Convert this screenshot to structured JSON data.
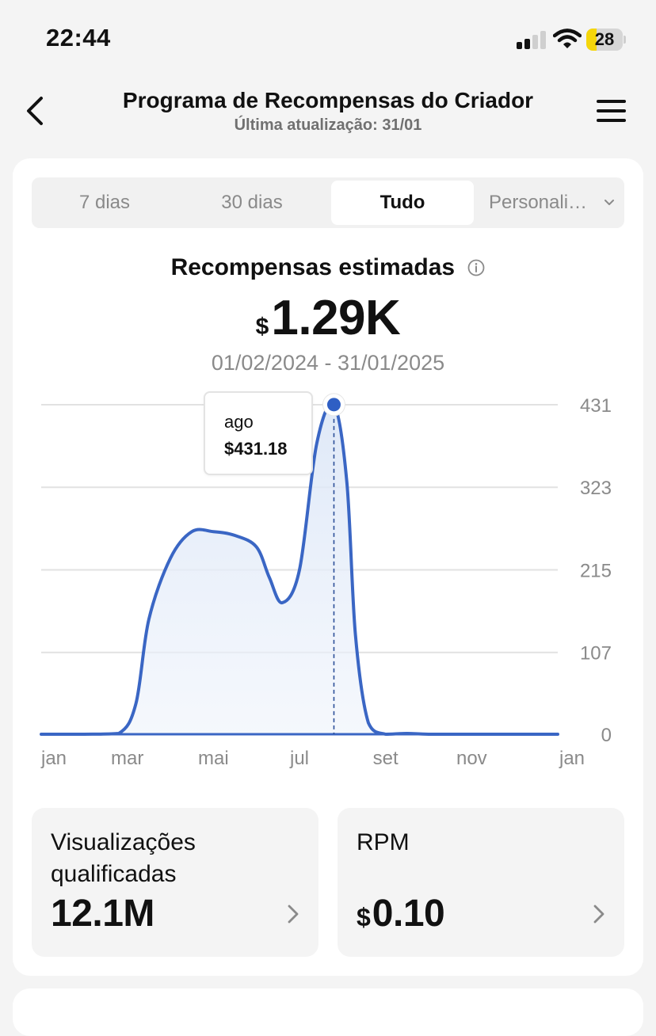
{
  "status_bar": {
    "time": "22:44",
    "battery": "28",
    "battery_level": 0.28,
    "signal_bars": 2
  },
  "header": {
    "title": "Programa de Recompensas do Criador",
    "subtitle": "Última atualização: 31/01"
  },
  "tabs": [
    {
      "label": "7 dias",
      "active": false
    },
    {
      "label": "30 dias",
      "active": false
    },
    {
      "label": "Tudo",
      "active": true
    },
    {
      "label": "Personali…",
      "active": false
    }
  ],
  "summary": {
    "label": "Recompensas estimadas",
    "currency": "$",
    "value": "1.29K",
    "date_range": "01/02/2024 - 31/01/2025"
  },
  "tooltip": {
    "month": "ago",
    "value": "$431.18"
  },
  "chart_data": {
    "type": "area",
    "x_ticks": [
      "jan",
      "mar",
      "mai",
      "jul",
      "set",
      "nov",
      "jan"
    ],
    "y_ticks": [
      0,
      107,
      215,
      323,
      431
    ],
    "ylim": [
      0,
      431
    ],
    "xlim": [
      0,
      12
    ],
    "grid": true,
    "y_axis_position": "right",
    "series": [
      {
        "color": "#3a66c4",
        "x": [
          0,
          1,
          1.8,
          2.2,
          2.5,
          3,
          3.5,
          4,
          4.5,
          5,
          5.3,
          5.6,
          6,
          6.4,
          6.8,
          7.1,
          7.3,
          7.6,
          8,
          8.5,
          9,
          10,
          11,
          12
        ],
        "y": [
          0,
          0,
          1,
          40,
          150,
          230,
          265,
          265,
          260,
          245,
          205,
          172,
          215,
          380,
          431,
          330,
          130,
          15,
          0,
          1,
          0,
          0,
          0,
          0
        ]
      }
    ],
    "highlight": {
      "x": 6.8,
      "y": 431.18,
      "label": "ago"
    }
  },
  "stats": [
    {
      "title": "Visualizações qualificadas",
      "currency": "",
      "value": "12.1M"
    },
    {
      "title": "RPM",
      "currency": "$",
      "value": "0.10"
    }
  ]
}
